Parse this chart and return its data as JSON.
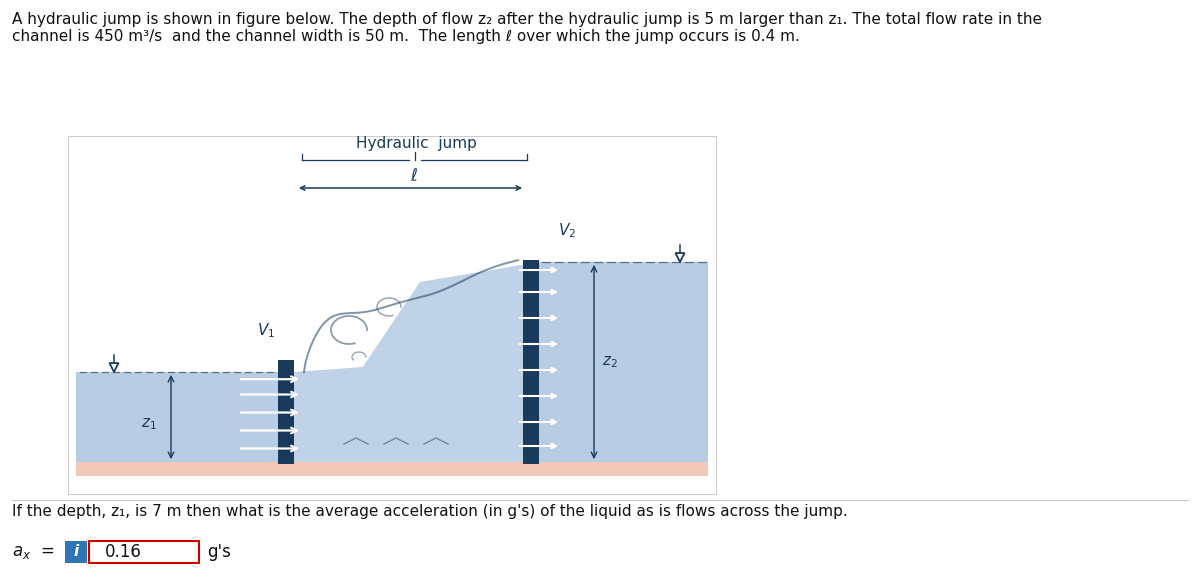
{
  "title_text_line1": "A hydraulic jump is shown in figure below. The depth of flow z₂ after the hydraulic jump is 5 m larger than z₁. The total flow rate in the",
  "title_text_line2": "channel is 450 m³/s  and the channel width is 50 m.  The length ℓ over which the jump occurs is 0.4 m.",
  "question_text": "If the depth, z₁, is 7 m then what is the average acceleration (in g's) of the liquid as is flows across the jump.",
  "answer_value": "0.16",
  "answer_unit": "g's",
  "bg_color": "#ffffff",
  "water_color": "#b8cce4",
  "bed_color": "#f0c8b8",
  "wall_color": "#1a3a5c",
  "text_color": "#1a3a5c",
  "info_box_color": "#2e75b6",
  "answer_box_border": "#cc0000",
  "fig_border_color": "#cccccc",
  "font_size_title": 11,
  "font_size_answer": 12
}
